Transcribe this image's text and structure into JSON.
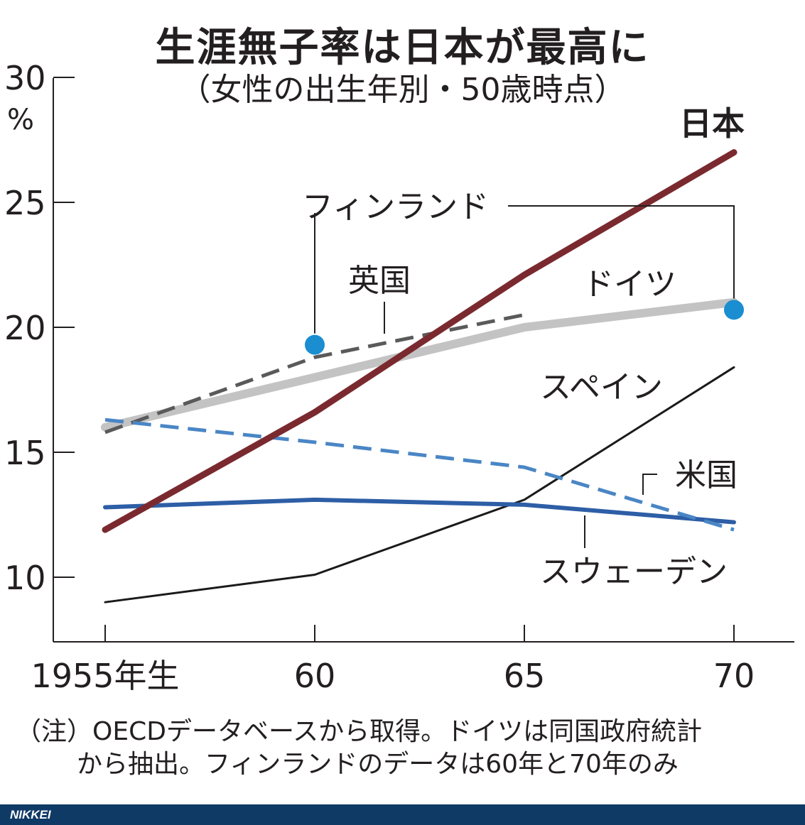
{
  "title": "生涯無子率は日本が最高に",
  "subtitle": "（女性の出生年別・50歳時点）",
  "chart_data": {
    "type": "line",
    "y_unit": "%",
    "ylim": [
      7.5,
      30
    ],
    "yticks": [
      10,
      15,
      20,
      25,
      30
    ],
    "xlim": [
      1952.5,
      1977.5
    ],
    "x": [
      1955,
      1960,
      1965,
      1970
    ],
    "x_tick_labels": [
      "1955年生",
      "60",
      "65",
      "70"
    ],
    "grid": false,
    "series": [
      {
        "name": "日本",
        "color": "#7a2a2f",
        "style": "solid",
        "width": 9,
        "points": [
          [
            1955,
            11.9
          ],
          [
            1960,
            16.6
          ],
          [
            1965,
            22.1
          ],
          [
            1970,
            27.0
          ]
        ]
      },
      {
        "name": "ドイツ",
        "color": "#c3c3c3",
        "style": "solid",
        "width": 12,
        "points": [
          [
            1955,
            16.0
          ],
          [
            1960,
            18.0
          ],
          [
            1965,
            20.0
          ],
          [
            1970,
            21.0
          ]
        ]
      },
      {
        "name": "英国",
        "color": "#5a5a5a",
        "style": "dashed",
        "width": 5,
        "points": [
          [
            1955,
            15.8
          ],
          [
            1960,
            18.8
          ],
          [
            1965,
            20.5
          ]
        ]
      },
      {
        "name": "フィンランド",
        "color": "#1a8ed0",
        "style": "markers",
        "points": [
          [
            1960,
            19.3
          ],
          [
            1970,
            20.7
          ]
        ]
      },
      {
        "name": "スペイン",
        "color": "#1a1a1a",
        "style": "solid",
        "width": 3,
        "points": [
          [
            1955,
            9.0
          ],
          [
            1960,
            10.1
          ],
          [
            1965,
            13.1
          ],
          [
            1970,
            18.4
          ]
        ]
      },
      {
        "name": "米国",
        "color": "#4a86c5",
        "style": "dashed",
        "width": 5,
        "points": [
          [
            1955,
            16.3
          ],
          [
            1960,
            15.4
          ],
          [
            1965,
            14.4
          ],
          [
            1970,
            11.9
          ]
        ]
      },
      {
        "name": "スウェーデン",
        "color": "#2d5ea6",
        "style": "solid",
        "width": 6,
        "points": [
          [
            1955,
            12.8
          ],
          [
            1960,
            13.1
          ],
          [
            1965,
            12.9
          ],
          [
            1970,
            12.2
          ]
        ]
      }
    ]
  },
  "note_line1": "（注）OECDデータベースから取得。ドイツは同国政府統計",
  "note_line2": "から抽出。フィンランドのデータは60年と70年のみ",
  "footer": "NIKKEI"
}
